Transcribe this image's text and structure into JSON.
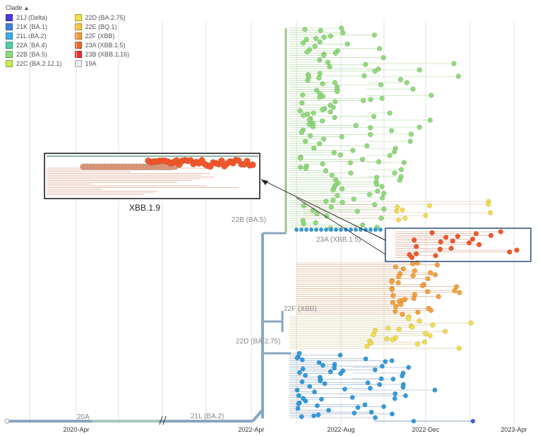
{
  "legend": {
    "title": "Clade",
    "items": [
      {
        "label": "21J (Delta)",
        "color": "#4a3ae0"
      },
      {
        "label": "21K (BA.1)",
        "color": "#3f7fe0"
      },
      {
        "label": "21L (BA.2)",
        "color": "#3aaee6"
      },
      {
        "label": "22A (BA.4)",
        "color": "#4fd0a8"
      },
      {
        "label": "22B (BA.5)",
        "color": "#8ee07a"
      },
      {
        "label": "22C (BA.2.12.1)",
        "color": "#c8ec5a"
      },
      {
        "label": "22D (BA.2.75)",
        "color": "#f5e04a"
      },
      {
        "label": "22E (BQ.1)",
        "color": "#f7c53a"
      },
      {
        "label": "22F (XBB)",
        "color": "#f79a36"
      },
      {
        "label": "23A (XBB.1.5)",
        "color": "#f5662c"
      },
      {
        "label": "23B (XBB.1.16)",
        "color": "#ee2e2e"
      },
      {
        "label": "19A",
        "color": "#eeeeee"
      }
    ]
  },
  "axis": {
    "ticks": [
      "2020-Apr",
      "2022-Apr",
      "2022-Aug",
      "2022-Dec",
      "2023-Apr"
    ]
  },
  "clade_labels": {
    "c20A": "20A",
    "c21L": "21L (BA.2)",
    "c22D": "22D (BA.2.75)",
    "c22F": "22F (XBB)",
    "c22B": "22B (BA.5)",
    "c23A": "23A (XBB.1.5)"
  },
  "inset": {
    "caption": "XBB.1.9"
  },
  "colors": {
    "trunk": "#8aa6bf",
    "green": "#8fdb7a",
    "blue": "#2f9be0",
    "yellow": "#f4dc4a",
    "orange": "#f7a03a",
    "red": "#f2572a",
    "salmon": "#d89a7a"
  }
}
